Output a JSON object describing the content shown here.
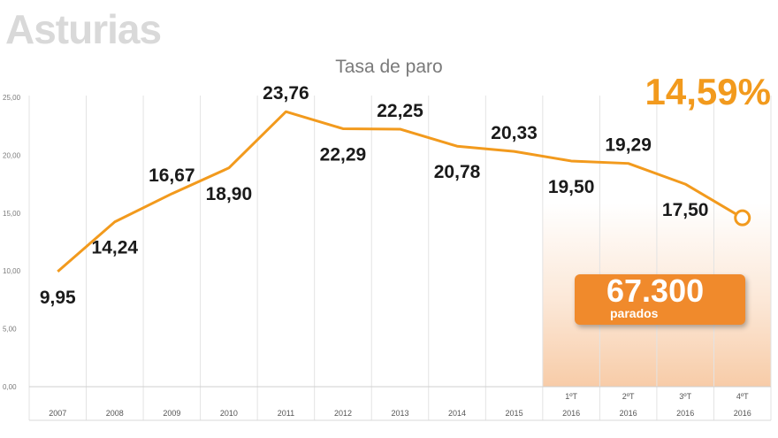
{
  "region_title": "Asturias",
  "highlight": {
    "current_rate": "14,59%",
    "unemployed_value": "67.300",
    "unemployed_label": "parados"
  },
  "colors": {
    "line": "#f29a1d",
    "highlight_text": "#f29a1d",
    "badge": "#f08a2c",
    "shaded_region": "#f7c9a3"
  },
  "chart_data": {
    "type": "line",
    "title": "Tasa de paro",
    "xlabel": "",
    "ylabel": "",
    "ylim": [
      0,
      25
    ],
    "yticks": [
      "0,00",
      "5,00",
      "10,00",
      "15,00",
      "20,00",
      "25,00"
    ],
    "ytick_values": [
      0,
      5,
      10,
      15,
      20,
      25
    ],
    "categories": [
      [
        "",
        "2007"
      ],
      [
        "",
        "2008"
      ],
      [
        "",
        "2009"
      ],
      [
        "",
        "2010"
      ],
      [
        "",
        "2011"
      ],
      [
        "",
        "2012"
      ],
      [
        "",
        "2013"
      ],
      [
        "",
        "2014"
      ],
      [
        "",
        "2015"
      ],
      [
        "1ºT",
        "2016"
      ],
      [
        "2ºT",
        "2016"
      ],
      [
        "3ºT",
        "2016"
      ],
      [
        "4ºT",
        "2016"
      ]
    ],
    "values": [
      9.95,
      14.24,
      16.67,
      18.9,
      23.76,
      22.29,
      22.25,
      20.78,
      20.33,
      19.5,
      19.29,
      17.5,
      14.59
    ],
    "data_labels": [
      "9,95",
      "14,24",
      "16,67",
      "18,90",
      "23,76",
      "22,29",
      "22,25",
      "20,78",
      "20,33",
      "19,50",
      "19,29",
      "17,50",
      ""
    ],
    "grid": true,
    "highlighted_range": [
      "1ºT 2016",
      "4ºT 2016"
    ]
  }
}
